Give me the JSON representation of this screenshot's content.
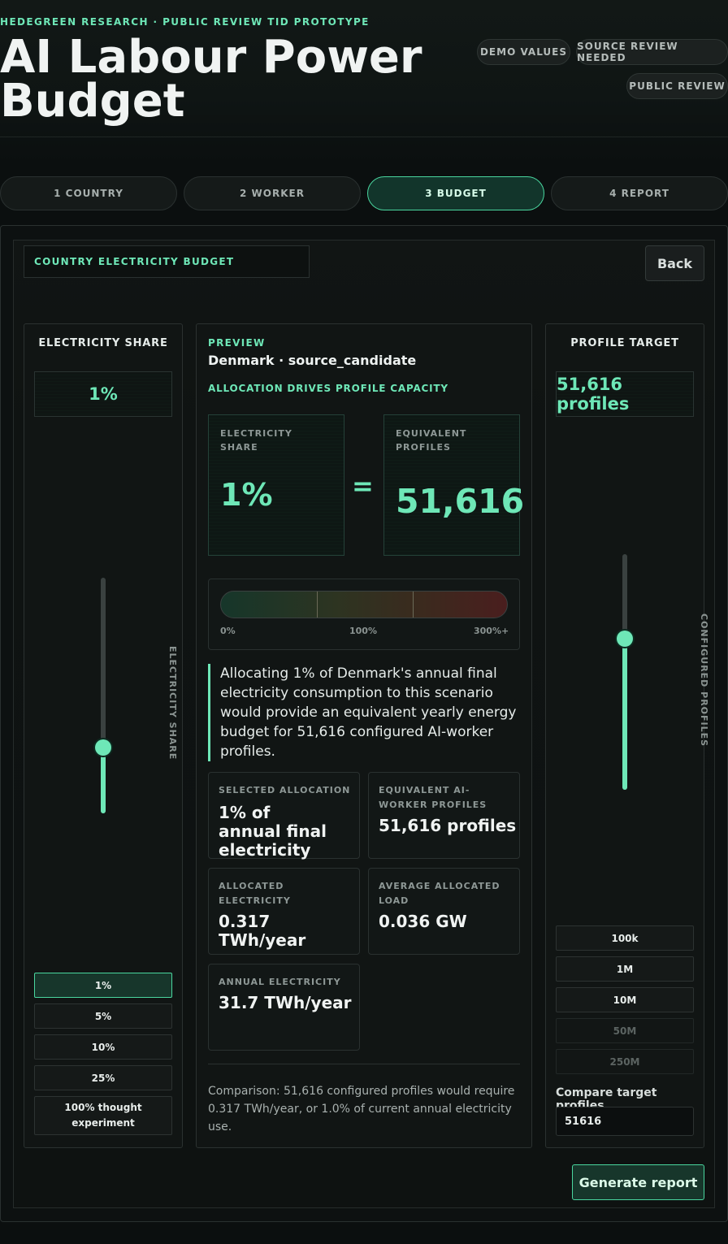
{
  "header": {
    "eyebrow": "HEDEGREEN RESEARCH · PUBLIC REVIEW TID PROTOTYPE",
    "title": "AI Labour Power Budget",
    "badges": [
      "DEMO VALUES",
      "SOURCE REVIEW NEEDED",
      "PUBLIC REVIEW"
    ]
  },
  "steps": [
    {
      "label": "1 COUNTRY",
      "active": false
    },
    {
      "label": "2 WORKER",
      "active": false
    },
    {
      "label": "3 BUDGET",
      "active": true
    },
    {
      "label": "4 REPORT",
      "active": false
    }
  ],
  "section": {
    "label": "COUNTRY ELECTRICITY BUDGET",
    "back_label": "Back"
  },
  "left_panel": {
    "title": "ELECTRICITY SHARE",
    "value": "1%",
    "slider_label": "ELECTRICITY SHARE",
    "slider_level": 0.28,
    "presets": [
      {
        "label": "1%",
        "selected": true
      },
      {
        "label": "5%",
        "selected": false
      },
      {
        "label": "10%",
        "selected": false
      },
      {
        "label": "25%",
        "selected": false
      },
      {
        "label": "100% thought experiment",
        "selected": false
      }
    ]
  },
  "preview": {
    "kicker": "PREVIEW",
    "country": "Denmark · source_candidate",
    "subtitle": "ALLOCATION DRIVES PROFILE CAPACITY",
    "share_label": "ELECTRICITY SHARE",
    "share_value": "1%",
    "equals": "=",
    "profiles_label": "EQUIVALENT PROFILES",
    "profiles_value": "51,616",
    "meter": {
      "fill_fraction": 0.0,
      "labels": [
        "0%",
        "100%",
        "300%+"
      ]
    },
    "statement": "Allocating 1% of Denmark's annual final electricity consumption to this scenario would provide an equivalent yearly energy budget for 51,616 configured AI-worker profiles.",
    "stats": [
      {
        "label": "SELECTED ALLOCATION",
        "value": "1% of annual final electricity"
      },
      {
        "label": "EQUIVALENT AI-WORKER PROFILES",
        "value": "51,616 profiles"
      },
      {
        "label": "ALLOCATED ELECTRICITY",
        "value": "0.317 TWh/year"
      },
      {
        "label": "AVERAGE ALLOCATED LOAD",
        "value": "0.036 GW"
      },
      {
        "label": "ANNUAL ELECTRICITY",
        "value": "31.7 TWh/year"
      }
    ],
    "comparison": "Comparison: 51,616 configured profiles would require 0.317 TWh/year, or 1.0% of current annual electricity use."
  },
  "right_panel": {
    "title": "PROFILE TARGET",
    "value": "51,616 profiles",
    "slider_label": "CONFIGURED PROFILES",
    "slider_level": 0.64,
    "presets": [
      {
        "label": "100k",
        "enabled": true
      },
      {
        "label": "1M",
        "enabled": true
      },
      {
        "label": "10M",
        "enabled": true
      },
      {
        "label": "50M",
        "enabled": false
      },
      {
        "label": "250M",
        "enabled": false
      }
    ],
    "compare_label": "Compare target profiles",
    "compare_value": "51616"
  },
  "footer": {
    "generate_label": "Generate report"
  },
  "colors": {
    "accent": "#6ee7b7",
    "background": "#0b0f0f",
    "panel": "#111514"
  }
}
